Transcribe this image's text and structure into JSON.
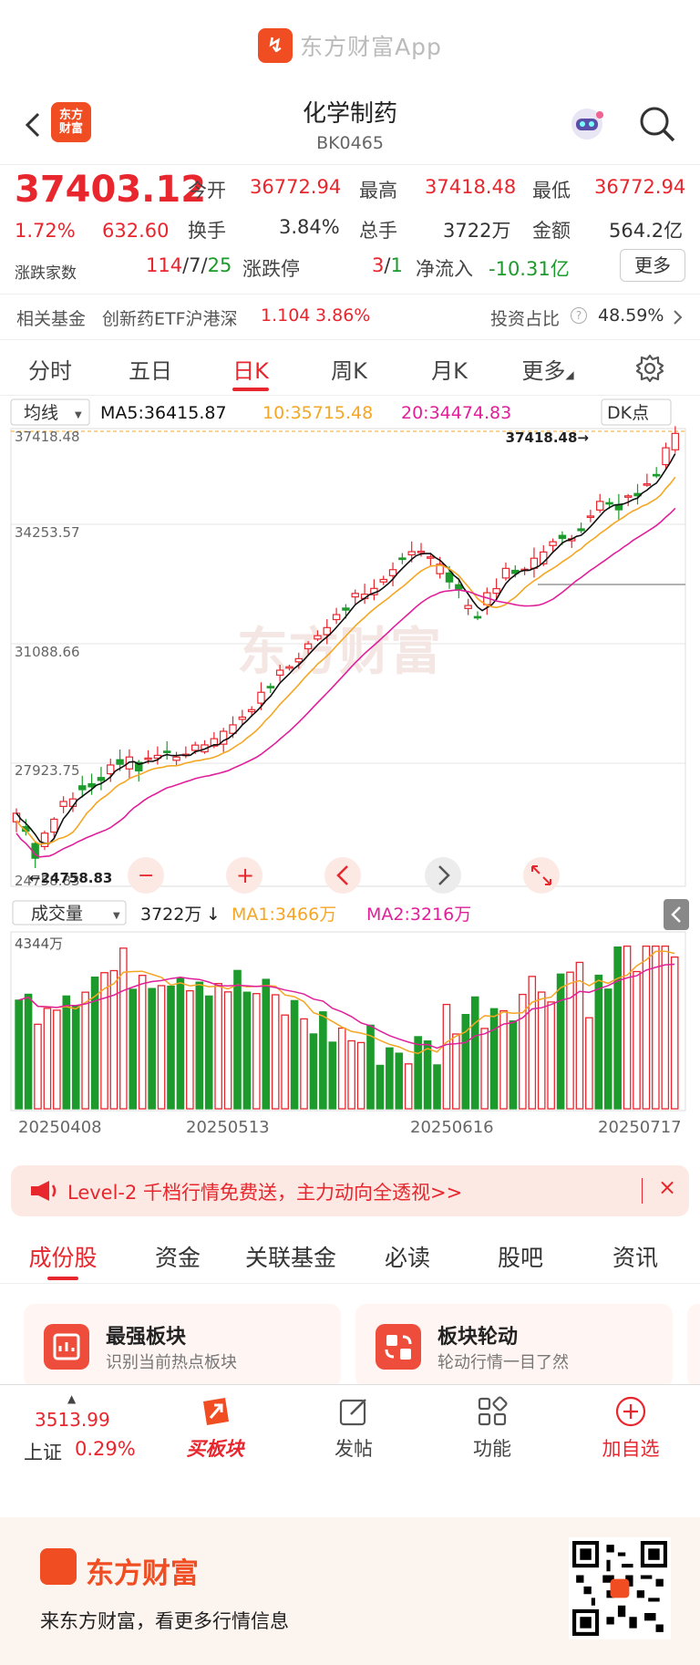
{
  "appbar": {
    "logo_glyph": "↯",
    "name": "东方财富App"
  },
  "nav": {
    "title": "化学制药",
    "code": "BK0465",
    "brand_top": "东方",
    "brand_bottom": "财富"
  },
  "quote": {
    "price": "37403.12",
    "change_pct": "1.72%",
    "change": "632.60",
    "open_label": "今开",
    "open": "36772.94",
    "high_label": "最高",
    "high": "37418.48",
    "low_label": "最低",
    "low": "36772.94",
    "turnover_label": "换手",
    "turnover": "3.84%",
    "volume_label": "总手",
    "volume": "3722万",
    "amount_label": "金额",
    "amount": "564.2亿",
    "updown_label": "涨跌家数",
    "up": "114",
    "flat": "7",
    "down": "25",
    "sep": "/",
    "limit_label": "涨跌停",
    "limit_up": "3",
    "limit_down": "1",
    "inflow_label": "净流入",
    "inflow": "-10.31亿",
    "more": "更多"
  },
  "fund": {
    "label": "相关基金",
    "name": "创新药ETF沪港深",
    "price": "1.104",
    "pct": "3.86%",
    "ratio_label": "投资占比",
    "ratio": "48.59%"
  },
  "tabs": [
    "分时",
    "五日",
    "日K",
    "周K",
    "月K",
    "更多"
  ],
  "chart": {
    "ma_selector": "均线",
    "ma5": "MA5:36415.87",
    "ma10": "10:35715.48",
    "ma20": "20:34474.83",
    "dk": "DK点",
    "price_ticks": [
      "37418.48",
      "34253.57",
      "31088.66",
      "27923.75",
      "24758.83"
    ],
    "max_label": "37418.48→",
    "min_label": "←24758.83",
    "vol_selector": "成交量",
    "vol": "3722万",
    "vol_ma1": "MA1:3466万",
    "vol_ma2": "MA2:3216万",
    "vol_tick": "4344万",
    "dates": [
      "20250408",
      "20250513",
      "20250616",
      "20250717"
    ],
    "watermark": "东方财富",
    "colors": {
      "up": "#e8262e",
      "down": "#1c9a2c",
      "ma5": "#111111",
      "ma10": "#f5a623",
      "ma20": "#e0209a"
    }
  },
  "banner": {
    "text": "Level-2 千档行情免费送，主力动向全透视>>",
    "close": "×"
  },
  "subtabs": [
    "成份股",
    "资金",
    "关联基金",
    "必读",
    "股吧",
    "资讯"
  ],
  "cards": [
    {
      "title": "最强板块",
      "sub": "识别当前热点板块"
    },
    {
      "title": "板块轮动",
      "sub": "轮动行情一目了然"
    }
  ],
  "bottom": {
    "index_value": "3513.99",
    "index_name": "上证",
    "index_pct": "0.29%",
    "buy": "买板块",
    "post": "发帖",
    "func": "功能",
    "watch": "加自选"
  },
  "footer": {
    "brand": "东方财富",
    "text": "来东方财富，看更多行情信息"
  }
}
